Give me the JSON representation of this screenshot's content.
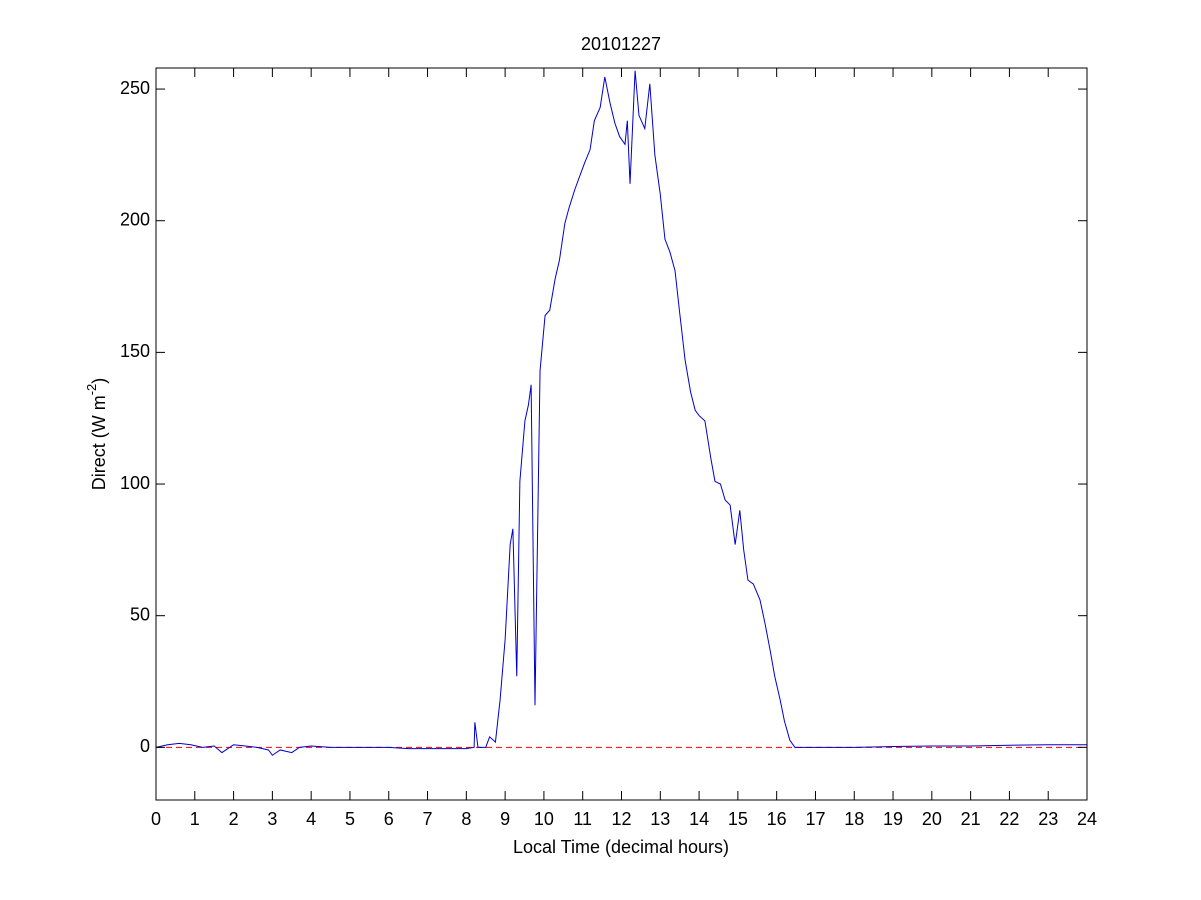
{
  "chart_data": {
    "type": "line",
    "title": "20101227",
    "xlabel": "Local Time (decimal hours)",
    "ylabel": {
      "text": "Direct (W m",
      "superscript": "-2",
      "suffix": ")"
    },
    "x": [
      0,
      0.3,
      0.6,
      0.9,
      1.2,
      1.5,
      1.7,
      2.0,
      2.3,
      2.6,
      2.9,
      3.0,
      3.2,
      3.5,
      3.7,
      4.0,
      4.5,
      5.0,
      5.5,
      6.0,
      6.5,
      7.0,
      7.5,
      8.0,
      8.2,
      8.22,
      8.3,
      8.5,
      8.6,
      8.75,
      8.87,
      9.0,
      9.13,
      9.2,
      9.3,
      9.38,
      9.51,
      9.6,
      9.67,
      9.77,
      9.9,
      10.03,
      10.15,
      10.29,
      10.4,
      10.54,
      10.65,
      10.8,
      10.95,
      11.05,
      11.19,
      11.3,
      11.45,
      11.57,
      11.7,
      11.83,
      11.95,
      12.09,
      12.15,
      12.22,
      12.35,
      12.45,
      12.6,
      12.73,
      12.86,
      13.0,
      13.12,
      13.25,
      13.38,
      13.5,
      13.64,
      13.78,
      13.9,
      14.0,
      14.15,
      14.3,
      14.41,
      14.55,
      14.67,
      14.8,
      14.93,
      15.05,
      15.15,
      15.26,
      15.4,
      15.57,
      15.7,
      15.83,
      15.95,
      16.09,
      16.2,
      16.34,
      16.47,
      17.0,
      18.0,
      19.0,
      20.0,
      21.0,
      22.0,
      23.0,
      24.0
    ],
    "series": [
      {
        "color": "#0000cc",
        "values": [
          0,
          1,
          1.5,
          1,
          0,
          0.5,
          -2,
          1,
          0.5,
          0,
          -1,
          -3,
          -1,
          -2,
          0,
          0.5,
          0,
          0,
          0,
          0,
          -0.5,
          -0.5,
          -0.5,
          -0.5,
          0,
          9.5,
          0,
          0,
          4,
          2,
          18,
          41,
          77,
          83,
          27,
          101,
          124,
          130,
          137.7,
          16,
          143,
          164,
          166,
          178,
          185,
          199,
          205,
          212,
          218,
          222,
          227,
          238,
          243,
          254.6,
          245,
          237,
          232,
          229,
          238,
          214,
          257,
          240,
          235,
          252,
          225,
          210,
          193,
          188,
          181,
          165,
          147,
          135,
          128,
          126,
          124,
          110,
          101,
          100,
          94,
          92,
          77,
          90,
          75,
          63.5,
          62,
          56,
          47,
          37,
          27,
          18,
          10,
          2.7,
          0,
          0,
          0,
          0.3,
          0.5,
          0.5,
          0.8,
          1,
          1
        ]
      }
    ],
    "reference_line": {
      "y": 0,
      "color": "#ff0000",
      "style": "dashed"
    },
    "xlim": [
      0,
      24
    ],
    "xticks": [
      0,
      1,
      2,
      3,
      4,
      5,
      6,
      7,
      8,
      9,
      10,
      11,
      12,
      13,
      14,
      15,
      16,
      17,
      18,
      19,
      20,
      21,
      22,
      23,
      24
    ],
    "ylim": [
      -20,
      258
    ],
    "yticks": [
      0,
      50,
      100,
      150,
      200,
      250
    ],
    "grid": false
  }
}
